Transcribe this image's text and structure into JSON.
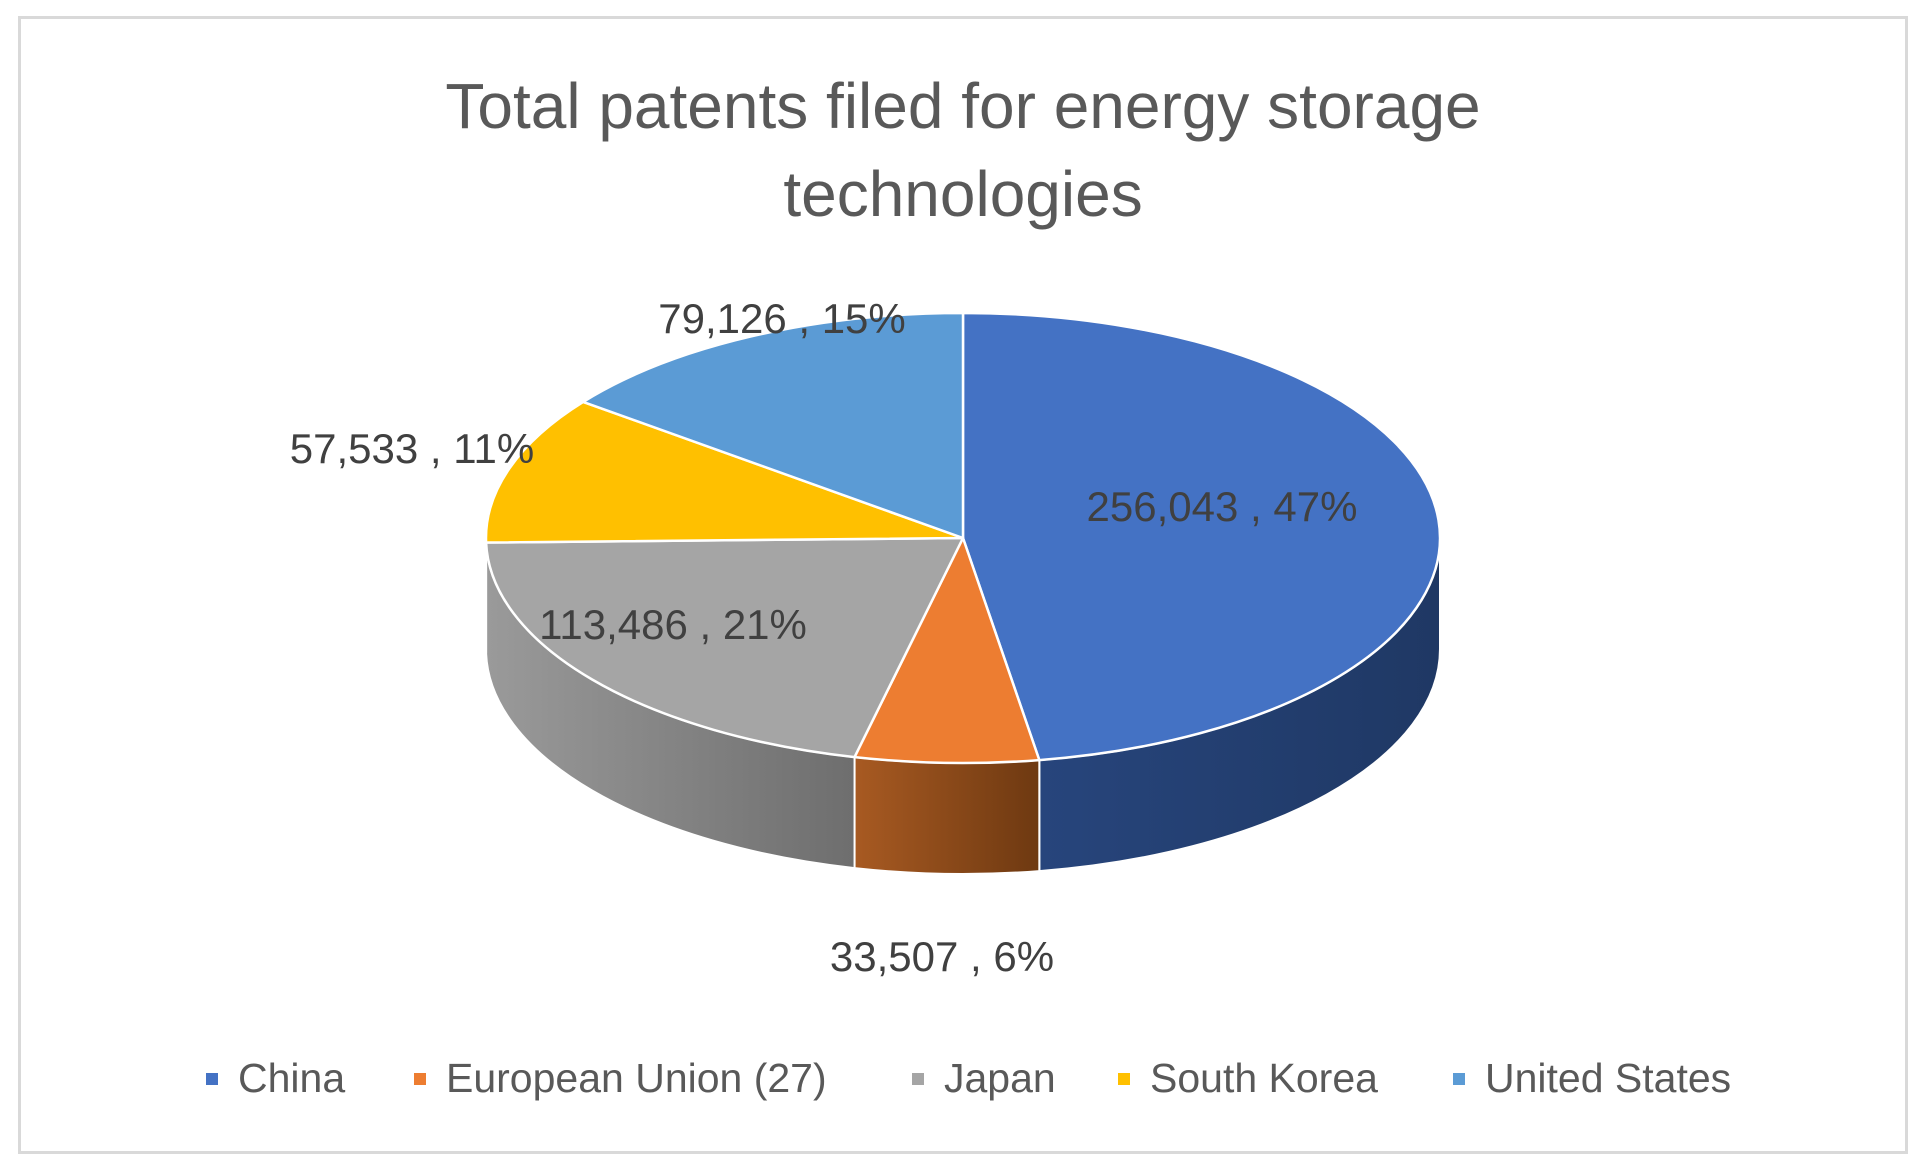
{
  "chart_data": {
    "type": "pie",
    "title": "Total patents filed for energy storage technologies",
    "title_lines": [
      "Total patents filed for energy storage",
      "technologies"
    ],
    "slices": [
      {
        "name": "China",
        "value": 256043,
        "percent": 47,
        "label": "256,043 , 47%",
        "color": "#4472C4",
        "side_dark": "#1F3864",
        "side_light": "#27457C"
      },
      {
        "name": "European Union (27)",
        "value": 33507,
        "percent": 6,
        "label": "33,507 , 6%",
        "color": "#ED7D31",
        "side_dark": "#6E3911",
        "side_light": "#A85A22"
      },
      {
        "name": "Japan",
        "value": 113486,
        "percent": 21,
        "label": "113,486 , 21%",
        "color": "#A5A5A5",
        "side_dark": "#6E6E6E",
        "side_light": "#9A9A9A"
      },
      {
        "name": "South Korea",
        "value": 57533,
        "percent": 11,
        "label": "57,533 , 11%",
        "color": "#FFC000",
        "side_dark": "#9C7500",
        "side_light": "#C99700"
      },
      {
        "name": "United States",
        "value": 79126,
        "percent": 15,
        "label": "79,126 , 15%",
        "color": "#5B9BD5",
        "side_dark": "#2E5F8A",
        "side_light": "#3E78AA"
      }
    ],
    "legend_position": "bottom",
    "style": "3d-pie"
  }
}
